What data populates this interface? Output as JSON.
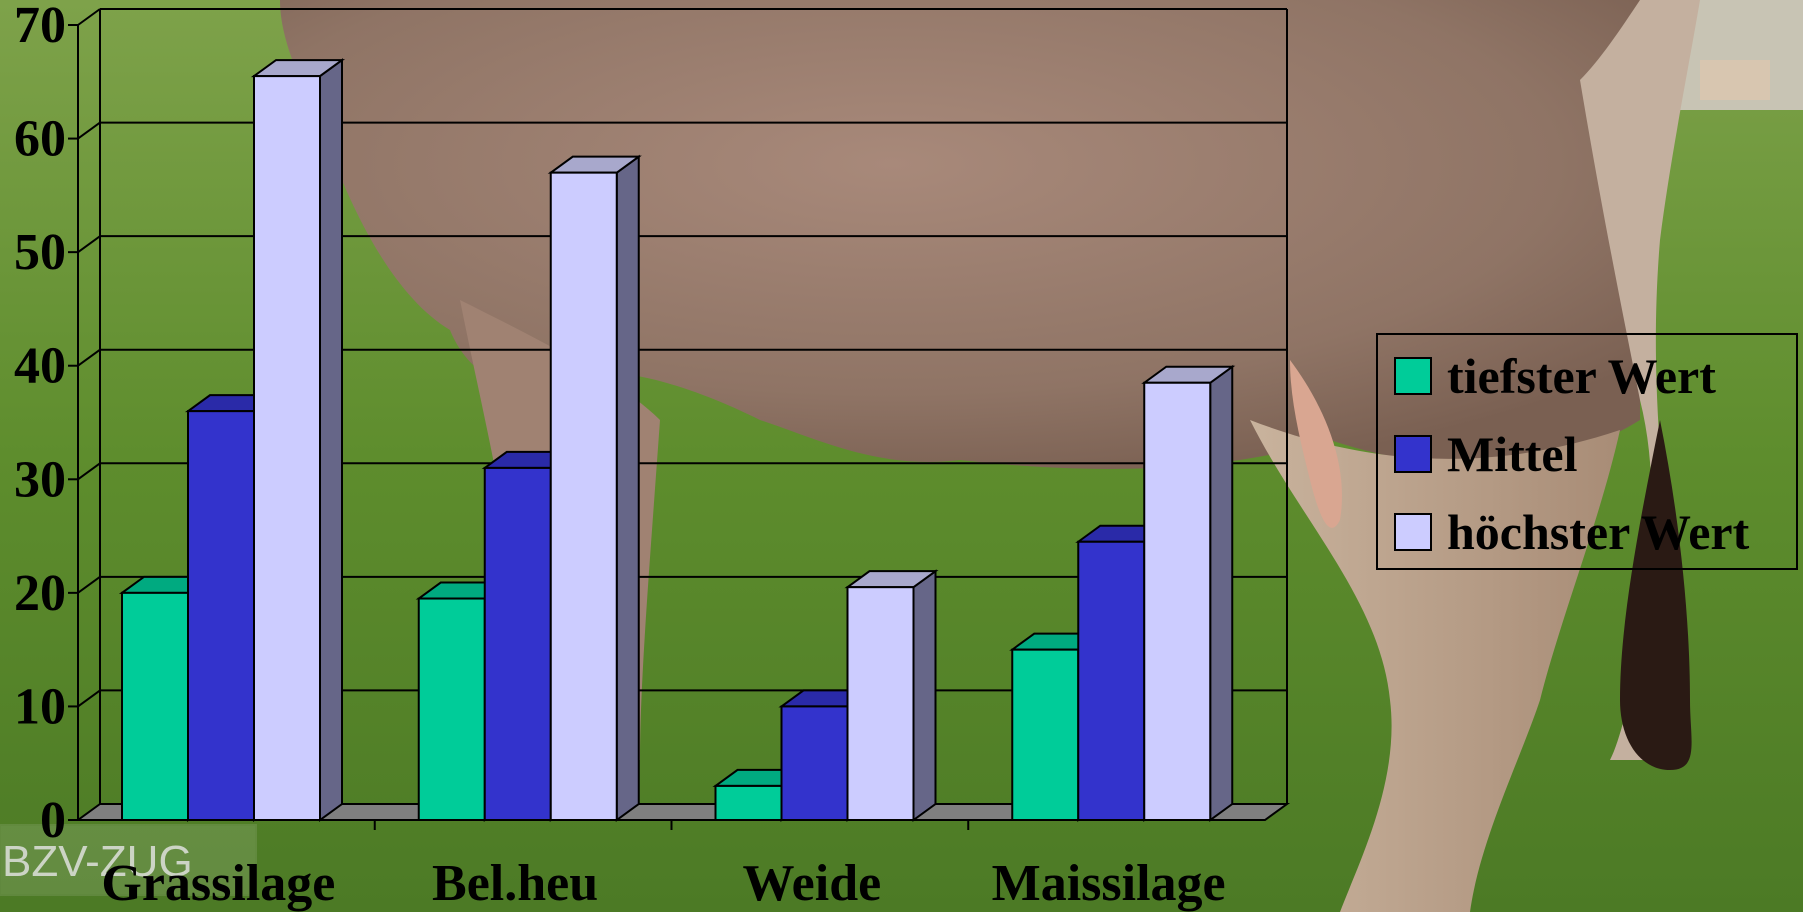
{
  "watermark": "BZV-ZUG",
  "chart_data": {
    "type": "bar",
    "categories": [
      "Grassilage",
      "Bel.heu",
      "Weide",
      "Maissilage"
    ],
    "series": [
      {
        "name": "tiefster Wert",
        "values": [
          20,
          19.5,
          3,
          15
        ],
        "color": "#00cc99",
        "side": "#009977",
        "top": "#00aa80"
      },
      {
        "name": "Mittel",
        "values": [
          36,
          31,
          10,
          24.5
        ],
        "color": "#3333cc",
        "side": "#222288",
        "top": "#2a2aa8"
      },
      {
        "name": "höchster Wert",
        "values": [
          65.5,
          57,
          20.5,
          38.5
        ],
        "color": "#ccccff",
        "side": "#666688",
        "top": "#a8a8cc"
      }
    ],
    "ylim": [
      0,
      70
    ],
    "yticks": [
      0,
      10,
      20,
      30,
      40,
      50,
      60,
      70
    ],
    "grid": true,
    "legend_position": "right",
    "title": "",
    "xlabel": "",
    "ylabel": ""
  }
}
